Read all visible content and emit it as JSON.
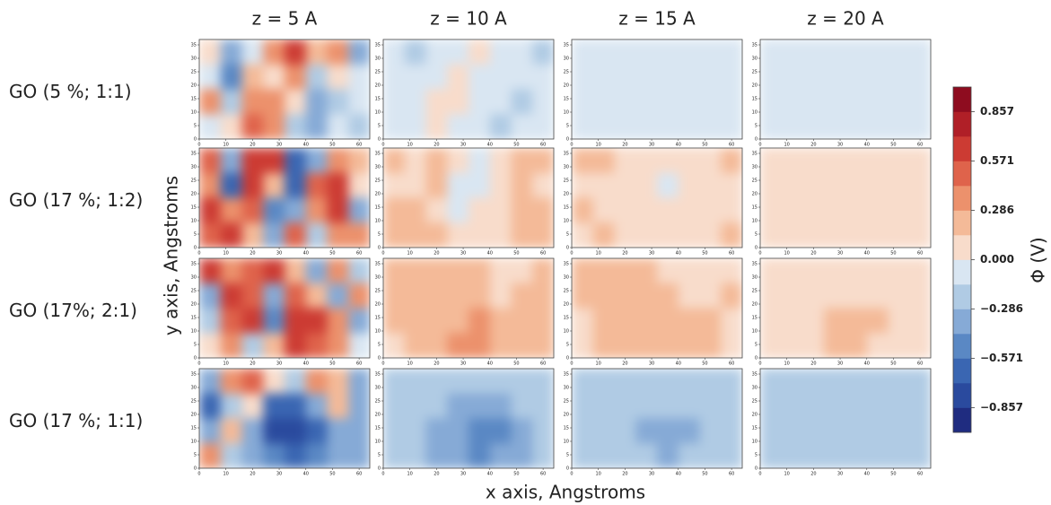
{
  "chart_data": {
    "type": "heatmap",
    "columns": [
      "z = 5 A",
      "z = 10 A",
      "z = 15 A",
      "z = 20 A"
    ],
    "rows": [
      "GO (5 %; 1:1)",
      "GO (17 %; 1:2)",
      "GO (17%; 2:1)",
      "GO (17 %; 1:1)"
    ],
    "xlabel": "x axis, Angstroms",
    "ylabel": "y axis, Angstroms",
    "colorbar_label": "Φ (V)",
    "xlim": [
      0,
      64
    ],
    "ylim": [
      0,
      37
    ],
    "xticks": [
      0,
      10,
      20,
      30,
      40,
      50,
      60
    ],
    "yticks": [
      0,
      5,
      10,
      15,
      20,
      25,
      30,
      35
    ],
    "clim": [
      -1,
      1
    ],
    "cticks": [
      0.857,
      0.571,
      0.286,
      {
        "value": 0,
        "label": "0.000"
      },
      {
        "value": -0.286,
        "label": "−0.286"
      },
      {
        "value": -0.571,
        "label": "−0.571"
      },
      {
        "value": -0.857,
        "label": "−0.857"
      }
    ],
    "colors": [
      "#1f2c80",
      "#2a4a9e",
      "#3a66b2",
      "#5a88c4",
      "#86aad6",
      "#b0cbe4",
      "#d9e6f2",
      "#f8dccb",
      "#f4ba98",
      "#ec916c",
      "#df634b",
      "#cc3b33",
      "#b01f27",
      "#8e0c1f"
    ],
    "panels": [
      [
        {
          "values": [
            [
              0.1,
              -0.3,
              -0.1,
              0.3,
              0.6,
              0.2,
              0.3,
              -0.4
            ],
            [
              -0.1,
              -0.5,
              0.2,
              0.0,
              0.4,
              -0.2,
              0.1,
              -0.1
            ],
            [
              0.4,
              -0.2,
              0.3,
              0.4,
              0.1,
              -0.3,
              -0.2,
              -0.1
            ],
            [
              -0.1,
              0.0,
              0.5,
              0.3,
              -0.2,
              -0.3,
              -0.1,
              -0.2
            ]
          ]
        },
        {
          "values": [
            [
              -0.1,
              -0.15,
              -0.1,
              -0.05,
              0.1,
              -0.05,
              -0.1,
              -0.15
            ],
            [
              -0.1,
              -0.1,
              -0.05,
              0.0,
              -0.05,
              -0.1,
              -0.1,
              -0.1
            ],
            [
              -0.05,
              -0.1,
              0.05,
              0.05,
              -0.05,
              -0.1,
              -0.15,
              -0.1
            ],
            [
              -0.1,
              -0.05,
              0.05,
              -0.05,
              -0.1,
              -0.15,
              -0.1,
              -0.1
            ]
          ]
        },
        {
          "values": [
            [
              -0.07,
              -0.07,
              -0.06,
              -0.06,
              -0.05,
              -0.06,
              -0.07,
              -0.07
            ],
            [
              -0.07,
              -0.06,
              -0.06,
              -0.05,
              -0.06,
              -0.07,
              -0.07,
              -0.07
            ],
            [
              -0.06,
              -0.06,
              -0.05,
              -0.05,
              -0.06,
              -0.07,
              -0.08,
              -0.07
            ],
            [
              -0.07,
              -0.06,
              -0.05,
              -0.06,
              -0.07,
              -0.08,
              -0.07,
              -0.07
            ]
          ]
        },
        {
          "values": [
            [
              -0.05,
              -0.05,
              -0.05,
              -0.05,
              -0.05,
              -0.05,
              -0.05,
              -0.05
            ],
            [
              -0.05,
              -0.05,
              -0.05,
              -0.05,
              -0.05,
              -0.05,
              -0.05,
              -0.05
            ],
            [
              -0.05,
              -0.05,
              -0.05,
              -0.05,
              -0.05,
              -0.05,
              -0.06,
              -0.05
            ],
            [
              -0.05,
              -0.05,
              -0.05,
              -0.05,
              -0.05,
              -0.06,
              -0.05,
              -0.05
            ]
          ]
        }
      ],
      [
        {
          "values": [
            [
              0.5,
              -0.3,
              0.6,
              0.7,
              -0.6,
              -0.3,
              0.4,
              0.2
            ],
            [
              0.3,
              -0.6,
              0.7,
              0.2,
              -0.7,
              0.5,
              0.6,
              0.1
            ],
            [
              0.6,
              0.3,
              0.5,
              -0.5,
              -0.4,
              0.4,
              0.6,
              -0.3
            ],
            [
              0.5,
              0.6,
              0.2,
              -0.3,
              0.5,
              -0.2,
              0.3,
              0.4
            ]
          ]
        },
        {
          "values": [
            [
              0.15,
              0.05,
              0.2,
              0.1,
              -0.05,
              0.1,
              0.2,
              0.15
            ],
            [
              0.1,
              0.0,
              0.15,
              -0.05,
              -0.1,
              0.05,
              0.2,
              0.1
            ],
            [
              0.2,
              0.15,
              0.1,
              -0.05,
              0.0,
              0.1,
              0.2,
              0.15
            ],
            [
              0.15,
              0.2,
              0.15,
              0.0,
              0.1,
              0.05,
              0.15,
              0.2
            ]
          ]
        },
        {
          "values": [
            [
              0.15,
              0.15,
              0.1,
              0.05,
              0.0,
              0.05,
              0.1,
              0.15
            ],
            [
              0.12,
              0.12,
              0.1,
              0.03,
              -0.02,
              0.05,
              0.12,
              0.12
            ],
            [
              0.15,
              0.12,
              0.1,
              0.03,
              0.0,
              0.06,
              0.14,
              0.12
            ],
            [
              0.12,
              0.15,
              0.12,
              0.05,
              0.03,
              0.08,
              0.12,
              0.15
            ]
          ]
        },
        {
          "values": [
            [
              0.1,
              0.1,
              0.1,
              0.06,
              0.03,
              0.05,
              0.08,
              0.1
            ],
            [
              0.1,
              0.1,
              0.08,
              0.05,
              0.02,
              0.05,
              0.08,
              0.1
            ],
            [
              0.1,
              0.1,
              0.08,
              0.05,
              0.03,
              0.06,
              0.1,
              0.1
            ],
            [
              0.1,
              0.1,
              0.1,
              0.06,
              0.04,
              0.07,
              0.1,
              0.1
            ]
          ]
        }
      ],
      [
        {
          "values": [
            [
              0.6,
              0.3,
              0.5,
              0.6,
              0.2,
              -0.4,
              0.3,
              -0.2
            ],
            [
              -0.3,
              0.6,
              0.5,
              -0.4,
              0.5,
              0.2,
              -0.3,
              0.4
            ],
            [
              -0.2,
              0.5,
              0.6,
              -0.5,
              0.6,
              0.6,
              0.4,
              -0.3
            ],
            [
              0.1,
              0.4,
              -0.2,
              0.2,
              0.6,
              0.5,
              0.3,
              -0.1
            ]
          ]
        },
        {
          "values": [
            [
              0.2,
              0.25,
              0.2,
              0.2,
              0.15,
              0.0,
              0.1,
              0.15
            ],
            [
              0.2,
              0.25,
              0.2,
              0.15,
              0.2,
              0.05,
              0.15,
              0.2
            ],
            [
              0.15,
              0.2,
              0.2,
              0.25,
              0.3,
              0.25,
              0.2,
              0.15
            ],
            [
              0.1,
              0.15,
              0.2,
              0.3,
              0.3,
              0.25,
              0.2,
              0.15
            ]
          ]
        },
        {
          "values": [
            [
              0.15,
              0.15,
              0.15,
              0.15,
              0.12,
              0.1,
              0.12,
              0.12
            ],
            [
              0.15,
              0.15,
              0.15,
              0.15,
              0.15,
              0.12,
              0.12,
              0.15
            ],
            [
              0.12,
              0.15,
              0.15,
              0.2,
              0.2,
              0.18,
              0.15,
              0.12
            ],
            [
              0.12,
              0.15,
              0.18,
              0.2,
              0.2,
              0.18,
              0.15,
              0.12
            ]
          ]
        },
        {
          "values": [
            [
              0.12,
              0.12,
              0.12,
              0.12,
              0.12,
              0.1,
              0.12,
              0.12
            ],
            [
              0.12,
              0.12,
              0.12,
              0.12,
              0.12,
              0.12,
              0.12,
              0.12
            ],
            [
              0.12,
              0.12,
              0.14,
              0.15,
              0.16,
              0.15,
              0.12,
              0.12
            ],
            [
              0.12,
              0.12,
              0.14,
              0.15,
              0.15,
              0.14,
              0.12,
              0.12
            ]
          ]
        }
      ],
      [
        {
          "values": [
            [
              -0.3,
              0.3,
              0.5,
              0.1,
              -0.2,
              0.3,
              0.2,
              -0.3
            ],
            [
              -0.6,
              -0.2,
              0.0,
              -0.6,
              -0.7,
              -0.3,
              0.2,
              -0.4
            ],
            [
              -0.4,
              0.2,
              -0.3,
              -0.8,
              -0.8,
              -0.6,
              -0.4,
              -0.3
            ],
            [
              0.3,
              -0.2,
              -0.4,
              -0.5,
              -0.6,
              -0.5,
              -0.3,
              -0.4
            ]
          ]
        },
        {
          "values": [
            [
              -0.2,
              -0.15,
              -0.2,
              -0.2,
              -0.25,
              -0.2,
              -0.2,
              -0.2
            ],
            [
              -0.2,
              -0.2,
              -0.25,
              -0.3,
              -0.35,
              -0.3,
              -0.25,
              -0.2
            ],
            [
              -0.25,
              -0.25,
              -0.3,
              -0.4,
              -0.55,
              -0.45,
              -0.3,
              -0.25
            ],
            [
              -0.2,
              -0.25,
              -0.3,
              -0.4,
              -0.5,
              -0.4,
              -0.3,
              -0.25
            ]
          ]
        },
        {
          "values": [
            [
              -0.18,
              -0.18,
              -0.2,
              -0.2,
              -0.2,
              -0.2,
              -0.18,
              -0.18
            ],
            [
              -0.2,
              -0.2,
              -0.22,
              -0.25,
              -0.28,
              -0.25,
              -0.22,
              -0.2
            ],
            [
              -0.2,
              -0.22,
              -0.25,
              -0.3,
              -0.33,
              -0.3,
              -0.25,
              -0.22
            ],
            [
              -0.2,
              -0.22,
              -0.25,
              -0.28,
              -0.3,
              -0.28,
              -0.24,
              -0.22
            ]
          ]
        },
        {
          "values": [
            [
              -0.15,
              -0.15,
              -0.16,
              -0.16,
              -0.17,
              -0.16,
              -0.15,
              -0.15
            ],
            [
              -0.16,
              -0.16,
              -0.17,
              -0.18,
              -0.19,
              -0.18,
              -0.17,
              -0.16
            ],
            [
              -0.16,
              -0.17,
              -0.18,
              -0.2,
              -0.21,
              -0.2,
              -0.18,
              -0.17
            ],
            [
              -0.16,
              -0.17,
              -0.18,
              -0.19,
              -0.2,
              -0.19,
              -0.18,
              -0.17
            ]
          ]
        }
      ]
    ]
  }
}
